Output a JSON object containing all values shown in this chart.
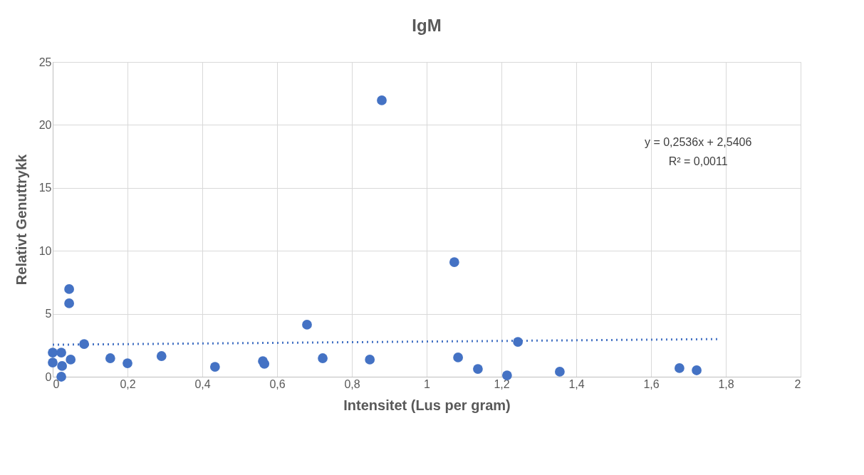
{
  "chart_data": {
    "type": "scatter",
    "title": "IgM",
    "xlabel": "Intensitet (Lus per gram)",
    "ylabel": "Relativt Genuttrykk",
    "x": [
      0,
      0,
      0.023,
      0.025,
      0.023,
      0.044,
      0.044,
      0.048,
      0.084,
      0.154,
      0.2,
      0.291,
      0.434,
      0.562,
      0.566,
      0.68,
      0.722,
      0.848,
      0.88,
      1.074,
      1.084,
      1.137,
      1.215,
      1.244,
      1.356,
      1.676,
      1.722
    ],
    "series": [
      {
        "color": "#4472c4",
        "marker": "circle",
        "values": [
          1.92,
          1.13,
          1.92,
          0.85,
          0.0,
          6.96,
          5.83,
          1.36,
          2.6,
          1.47,
          1.07,
          1.64,
          0.79,
          1.24,
          1.02,
          4.13,
          1.47,
          1.36,
          21.95,
          9.1,
          1.53,
          0.62,
          0.11,
          2.77,
          0.4,
          0.68,
          0.51
        ]
      },
      {
        "type": "line",
        "color": "#4472c4",
        "line_style": "dotted",
        "marker": "none",
        "x": [
          0,
          1.78
        ],
        "values": [
          2.54,
          2.99
        ]
      }
    ],
    "annotations": [
      "y = 0,2536x + 2,5406",
      "R² = 0,0011"
    ],
    "xlim": [
      0,
      2
    ],
    "ylim": [
      0,
      25
    ],
    "xticks": [
      0,
      {
        "value": 0.2,
        "label": "0,2"
      },
      {
        "value": 0.4,
        "label": "0,4"
      },
      {
        "value": 0.6,
        "label": "0,6"
      },
      {
        "value": 0.8,
        "label": "0,8"
      },
      1,
      {
        "value": 1.2,
        "label": "1,2"
      },
      {
        "value": 1.4,
        "label": "1,4"
      },
      {
        "value": 1.6,
        "label": "1,6"
      },
      {
        "value": 1.8,
        "label": "1,8"
      },
      2
    ],
    "yticks": [
      0,
      5,
      10,
      15,
      20,
      25
    ],
    "grid": true
  }
}
